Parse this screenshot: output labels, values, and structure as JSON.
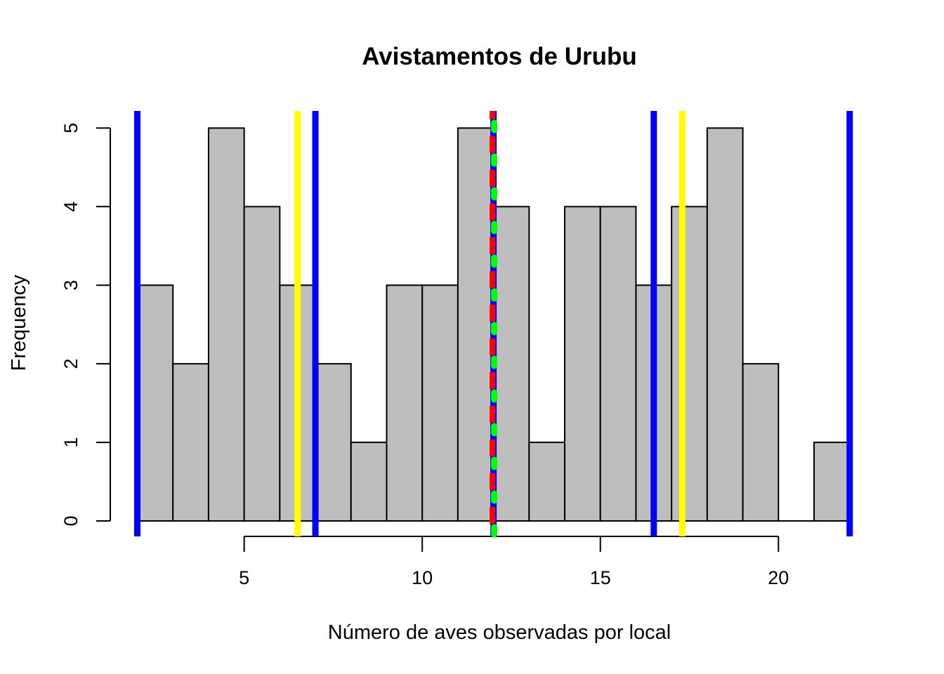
{
  "chart_data": {
    "type": "bar",
    "title": "Avistamentos de Urubu",
    "xlabel": "Número de aves observadas por local",
    "ylabel": "Frequency",
    "bins": [
      {
        "from": 2,
        "to": 3,
        "count": 3
      },
      {
        "from": 3,
        "to": 4,
        "count": 2
      },
      {
        "from": 4,
        "to": 5,
        "count": 5
      },
      {
        "from": 5,
        "to": 6,
        "count": 4
      },
      {
        "from": 6,
        "to": 7,
        "count": 3
      },
      {
        "from": 7,
        "to": 8,
        "count": 2
      },
      {
        "from": 8,
        "to": 9,
        "count": 1
      },
      {
        "from": 9,
        "to": 10,
        "count": 3
      },
      {
        "from": 10,
        "to": 11,
        "count": 3
      },
      {
        "from": 11,
        "to": 12,
        "count": 5
      },
      {
        "from": 12,
        "to": 13,
        "count": 4
      },
      {
        "from": 13,
        "to": 14,
        "count": 1
      },
      {
        "from": 14,
        "to": 15,
        "count": 4
      },
      {
        "from": 15,
        "to": 16,
        "count": 4
      },
      {
        "from": 16,
        "to": 17,
        "count": 3
      },
      {
        "from": 17,
        "to": 18,
        "count": 4
      },
      {
        "from": 18,
        "to": 19,
        "count": 5
      },
      {
        "from": 19,
        "to": 20,
        "count": 2
      },
      {
        "from": 20,
        "to": 21,
        "count": 0
      },
      {
        "from": 21,
        "to": 22,
        "count": 1
      }
    ],
    "xlim": [
      1.3,
      22.4
    ],
    "ylim": [
      0,
      5.2
    ],
    "x_ticks": [
      "5",
      "10",
      "15",
      "20"
    ],
    "y_ticks": [
      "0",
      "1",
      "2",
      "3",
      "4",
      "5"
    ],
    "bar_color": "#bebebe",
    "vlines": [
      {
        "x": 2,
        "color": "#0000ff",
        "style": "solid"
      },
      {
        "x": 7,
        "color": "#0000ff",
        "style": "solid"
      },
      {
        "x": 12,
        "color": "#0000ff",
        "style": "solid"
      },
      {
        "x": 16.5,
        "color": "#0000ff",
        "style": "solid"
      },
      {
        "x": 22,
        "color": "#0000ff",
        "style": "solid"
      },
      {
        "x": 6.5,
        "color": "#ffff00",
        "style": "solid"
      },
      {
        "x": 17.3,
        "color": "#ffff00",
        "style": "solid"
      },
      {
        "x": 11.97,
        "color": "#ff0000",
        "style": "dashed"
      },
      {
        "x": 12,
        "color": "#00ff00",
        "style": "dotted"
      }
    ]
  }
}
